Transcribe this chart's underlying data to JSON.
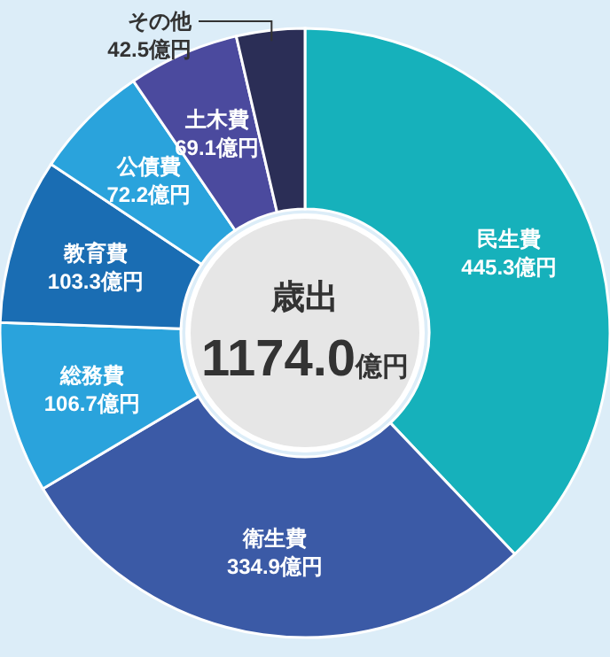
{
  "chart_data": {
    "type": "donut",
    "title": "歳出",
    "subtitle": "1174.0億円",
    "categories": [
      "民生費",
      "衛生費",
      "総務費",
      "教育費",
      "公債費",
      "土木費",
      "その他"
    ],
    "values": [
      445.3,
      334.9,
      106.7,
      103.3,
      72.2,
      69.1,
      42.5
    ],
    "value_labels": [
      "445.3億円",
      "334.9億円",
      "106.7億円",
      "103.3億円",
      "72.2億円",
      "69.1億円",
      "42.5億円"
    ],
    "colors": [
      "#16b1bb",
      "#3b5aa6",
      "#2aa3dc",
      "#1a6db3",
      "#2aa3dc",
      "#4b4a9e",
      "#2b2e56"
    ]
  }
}
